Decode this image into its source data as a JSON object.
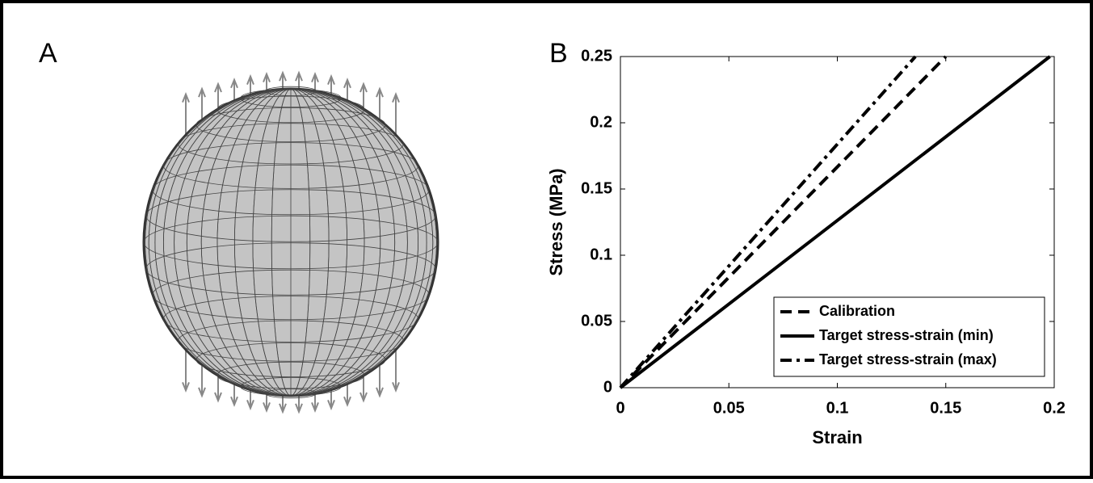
{
  "panel_labels": [
    "A",
    "B"
  ],
  "chart_data": {
    "type": "line",
    "xlabel": "Strain",
    "ylabel": "Stress (MPa)",
    "xlim": [
      0,
      0.2
    ],
    "ylim": [
      0,
      0.25
    ],
    "xticks": [
      0,
      0.05,
      0.1,
      0.15,
      0.2
    ],
    "yticks": [
      0,
      0.05,
      0.1,
      0.15,
      0.2,
      0.25
    ],
    "grid": false,
    "legend_position": "lower right",
    "series": [
      {
        "name": "Calibration",
        "color": "#000000",
        "style": "dashed",
        "x": [
          0,
          0.15
        ],
        "values": [
          0,
          0.25
        ]
      },
      {
        "name": "Target stress-strain (min)",
        "color": "#000000",
        "style": "solid",
        "x": [
          0,
          0.198
        ],
        "values": [
          0,
          0.25
        ]
      },
      {
        "name": "Target stress-strain (max)",
        "color": "#000000",
        "style": "dashdot",
        "x": [
          0,
          0.136
        ],
        "values": [
          0,
          0.25
        ]
      }
    ]
  }
}
